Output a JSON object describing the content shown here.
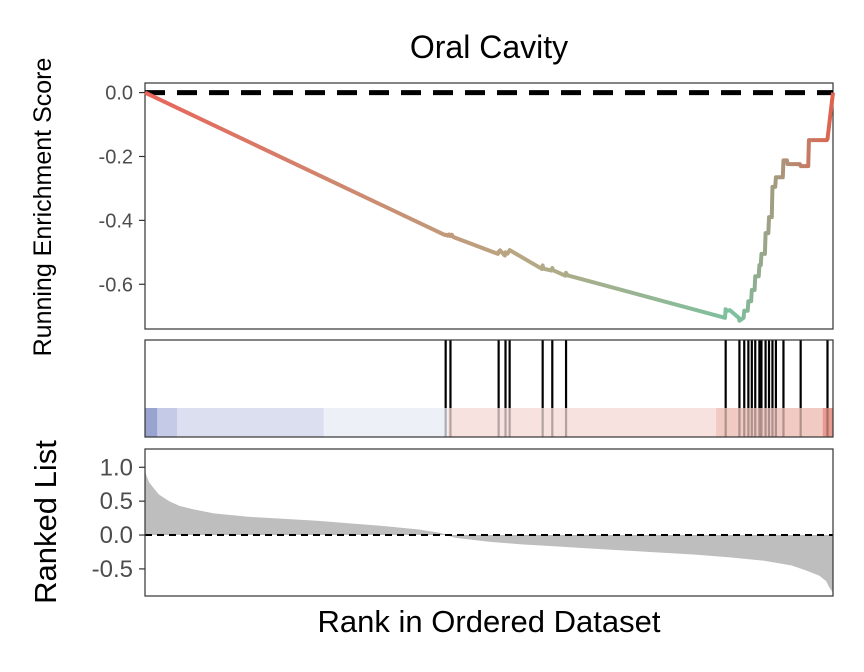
{
  "chart_data": {
    "type": "line",
    "title": "Oral Cavity",
    "ylabel": "Running Enrichment Score",
    "ylabel_bottom": "Ranked List",
    "xlabel": "Rank in Ordered Dataset",
    "x_range": [
      0,
      1
    ],
    "grid": false,
    "legend": "none",
    "es_panel": {
      "ylim": [
        -0.74,
        0.03
      ],
      "yticks": [
        0.0,
        -0.2,
        -0.4,
        -0.6
      ],
      "ytick_labels": [
        "0.0",
        "-0.2",
        "-0.4",
        "-0.6"
      ],
      "zero_line": "dashed",
      "series": [
        {
          "x": [
            0,
            0.436,
            0.438,
            0.44,
            0.442,
            0.444,
            0.446,
            0.448,
            0.513,
            0.514,
            0.516,
            0.523,
            0.524,
            0.527,
            0.53,
            0.577,
            0.578,
            0.579,
            0.591,
            0.592,
            0.593,
            0.611,
            0.612,
            0.614,
            0.843,
            0.844,
            0.846,
            0.85,
            0.863,
            0.864,
            0.87,
            0.871,
            0.876,
            0.877,
            0.881,
            0.882,
            0.886,
            0.887,
            0.892,
            0.893,
            0.895,
            0.896,
            0.901,
            0.902,
            0.906,
            0.907,
            0.911,
            0.912,
            0.916,
            0.917,
            0.927,
            0.928,
            0.933,
            0.934,
            0.952,
            0.953,
            0.964,
            0.965,
            0.991,
            0.992,
            1.0
          ],
          "y": [
            0.0,
            -0.446,
            -0.445,
            -0.448,
            -0.444,
            -0.449,
            -0.445,
            -0.452,
            -0.505,
            -0.498,
            -0.494,
            -0.51,
            -0.5,
            -0.504,
            -0.493,
            -0.552,
            -0.541,
            -0.551,
            -0.557,
            -0.549,
            -0.556,
            -0.573,
            -0.564,
            -0.572,
            -0.705,
            -0.678,
            -0.683,
            -0.681,
            -0.705,
            -0.714,
            -0.705,
            -0.683,
            -0.683,
            -0.653,
            -0.653,
            -0.618,
            -0.618,
            -0.575,
            -0.575,
            -0.54,
            -0.54,
            -0.505,
            -0.505,
            -0.44,
            -0.44,
            -0.39,
            -0.39,
            -0.295,
            -0.295,
            -0.265,
            -0.265,
            -0.212,
            -0.212,
            -0.224,
            -0.224,
            -0.23,
            -0.23,
            -0.149,
            -0.149,
            -0.145,
            0.0
          ]
        }
      ]
    },
    "hits": {
      "x": [
        0.437,
        0.444,
        0.514,
        0.524,
        0.53,
        0.578,
        0.592,
        0.612,
        0.844,
        0.864,
        0.871,
        0.877,
        0.882,
        0.887,
        0.893,
        0.896,
        0.902,
        0.907,
        0.912,
        0.917,
        0.928,
        0.953,
        0.992
      ]
    },
    "heatmap_bands": [
      {
        "from": 0.0,
        "to": 0.018,
        "color": "#98a3d0"
      },
      {
        "from": 0.018,
        "to": 0.047,
        "color": "#c5cbe6"
      },
      {
        "from": 0.047,
        "to": 0.26,
        "color": "#dcdfef"
      },
      {
        "from": 0.26,
        "to": 0.44,
        "color": "#eef0f7"
      },
      {
        "from": 0.44,
        "to": 0.83,
        "color": "#f7e2df"
      },
      {
        "from": 0.83,
        "to": 0.985,
        "color": "#f1cac3"
      },
      {
        "from": 0.985,
        "to": 1.0,
        "color": "#e89a8f"
      }
    ],
    "rank_panel": {
      "ylim": [
        -0.9,
        1.27
      ],
      "yticks": [
        1.0,
        0.5,
        0.0,
        -0.5
      ],
      "ytick_labels": [
        "1.0",
        "0.5",
        "0.0",
        "-0.5"
      ],
      "zero_line": "dashed",
      "fill_color": "#bebebe",
      "series": [
        {
          "x": [
            0.0,
            0.002,
            0.006,
            0.012,
            0.02,
            0.035,
            0.05,
            0.07,
            0.1,
            0.15,
            0.2,
            0.25,
            0.3,
            0.35,
            0.4,
            0.43,
            0.45,
            0.5,
            0.55,
            0.6,
            0.65,
            0.7,
            0.75,
            0.8,
            0.85,
            0.9,
            0.94,
            0.96,
            0.98,
            0.99,
            0.995,
            1.0
          ],
          "y": [
            0.95,
            0.88,
            0.78,
            0.7,
            0.6,
            0.5,
            0.43,
            0.38,
            0.32,
            0.27,
            0.24,
            0.21,
            0.17,
            0.13,
            0.08,
            0.03,
            -0.04,
            -0.1,
            -0.14,
            -0.17,
            -0.2,
            -0.23,
            -0.26,
            -0.29,
            -0.33,
            -0.38,
            -0.45,
            -0.52,
            -0.6,
            -0.68,
            -0.78,
            -0.85
          ]
        }
      ]
    },
    "colors": {
      "gradient_start": "#e8655a",
      "gradient_mid": "#b7a783",
      "gradient_end": "#7cc1a0",
      "gradient_right": "#e0624f"
    }
  }
}
